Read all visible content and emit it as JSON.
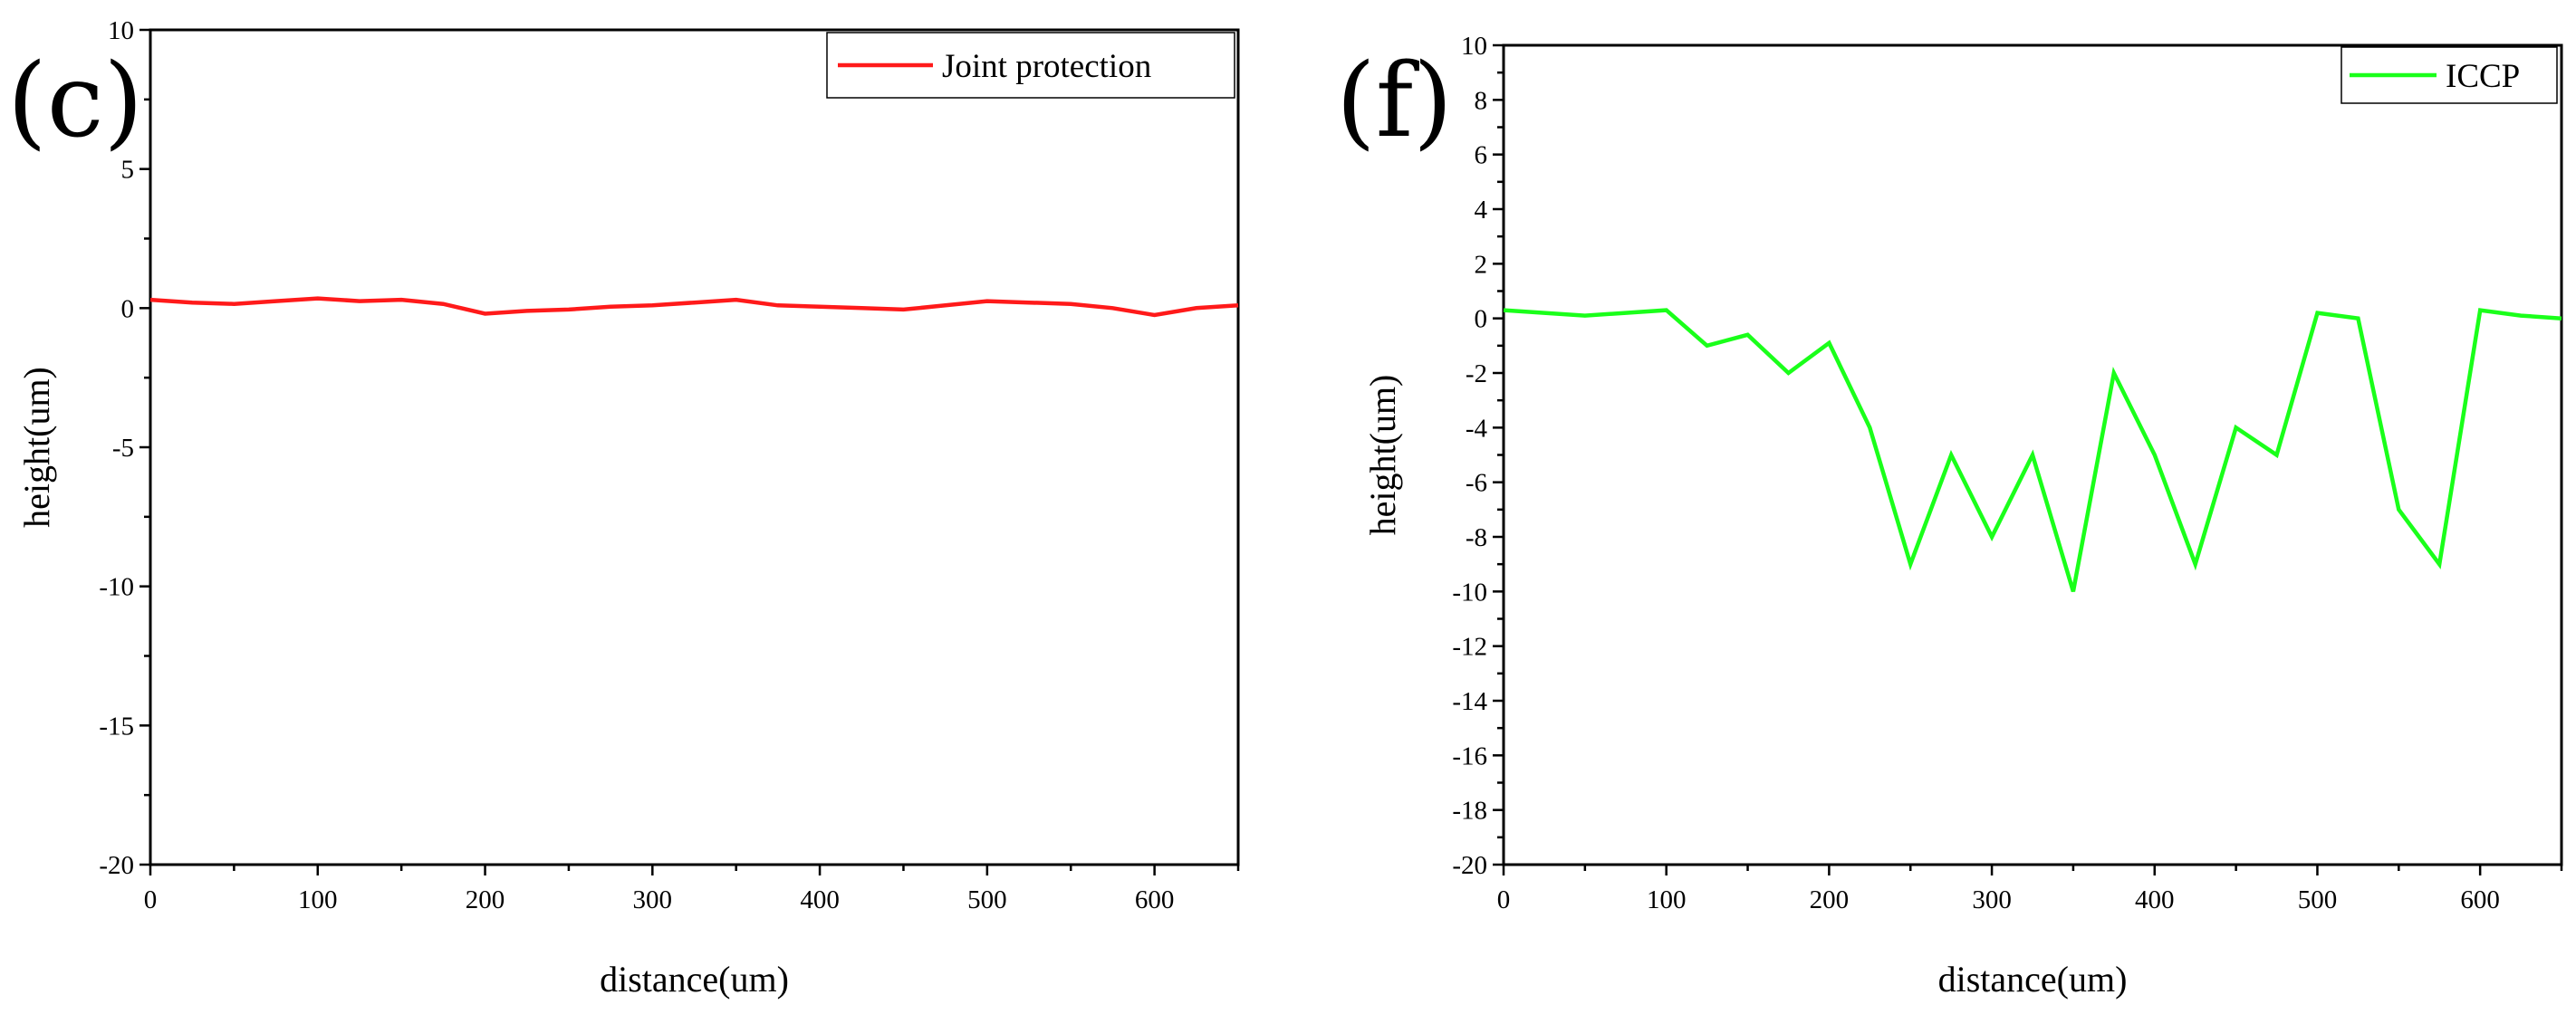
{
  "chart_data": [
    {
      "type": "line",
      "panel_label": "(c)",
      "title": "",
      "xlabel": "distance(um)",
      "ylabel": "height(um)",
      "xlim": [
        0,
        650
      ],
      "ylim": [
        -20,
        10
      ],
      "xticks": [
        0,
        100,
        200,
        300,
        400,
        500,
        600
      ],
      "xtick_labels": [
        "0",
        "100",
        "200",
        "300",
        "400",
        "500",
        "600"
      ],
      "yticks": [
        -20,
        -15,
        -10,
        -5,
        0,
        5,
        10
      ],
      "ytick_labels": [
        "-20",
        "-15",
        "-10",
        "-5",
        "0",
        "5",
        "10"
      ],
      "grid": false,
      "legend_position": "top-right",
      "series": [
        {
          "name": "Joint protection",
          "color": "#ff1a1a",
          "x": [
            0,
            25,
            50,
            75,
            100,
            125,
            150,
            175,
            200,
            225,
            250,
            275,
            300,
            325,
            350,
            375,
            400,
            425,
            450,
            475,
            500,
            525,
            550,
            575,
            600,
            625,
            650
          ],
          "y": [
            0.3,
            0.2,
            0.15,
            0.25,
            0.35,
            0.25,
            0.3,
            0.15,
            -0.2,
            -0.1,
            -0.05,
            0.05,
            0.1,
            0.2,
            0.3,
            0.1,
            0.05,
            0.0,
            -0.05,
            0.1,
            0.25,
            0.2,
            0.15,
            0.0,
            -0.25,
            0.0,
            0.1
          ]
        }
      ]
    },
    {
      "type": "line",
      "panel_label": "(f)",
      "title": "",
      "xlabel": "distance(um)",
      "ylabel": "height(um)",
      "xlim": [
        0,
        650
      ],
      "ylim": [
        -20,
        10
      ],
      "xticks": [
        0,
        100,
        200,
        300,
        400,
        500,
        600
      ],
      "xtick_labels": [
        "0",
        "100",
        "200",
        "300",
        "400",
        "500",
        "600"
      ],
      "yticks": [
        -20,
        -18,
        -16,
        -14,
        -12,
        -10,
        -8,
        -6,
        -4,
        -2,
        0,
        2,
        4,
        6,
        8,
        10
      ],
      "ytick_labels": [
        "-20",
        "-18",
        "-16",
        "-14",
        "-12",
        "-10",
        "-8",
        "-6",
        "-4",
        "-2",
        "0",
        "2",
        "4",
        "6",
        "8",
        "10"
      ],
      "grid": false,
      "legend_position": "top-right",
      "series": [
        {
          "name": "ICCP",
          "color": "#1aff1a",
          "x": [
            0,
            25,
            50,
            75,
            100,
            125,
            150,
            175,
            200,
            225,
            250,
            275,
            300,
            325,
            350,
            375,
            400,
            425,
            450,
            475,
            500,
            525,
            550,
            575,
            600,
            625,
            650
          ],
          "y": [
            0.3,
            0.2,
            0.1,
            0.2,
            0.3,
            -1.0,
            -0.6,
            -2.0,
            -0.9,
            -4.0,
            -9.0,
            -5.0,
            -8.0,
            -5.0,
            -10.0,
            -2.0,
            -5.0,
            -9.0,
            -4.0,
            -5.0,
            0.2,
            0.0,
            -7.0,
            -9.0,
            0.3,
            0.1,
            0.0
          ]
        }
      ]
    }
  ]
}
